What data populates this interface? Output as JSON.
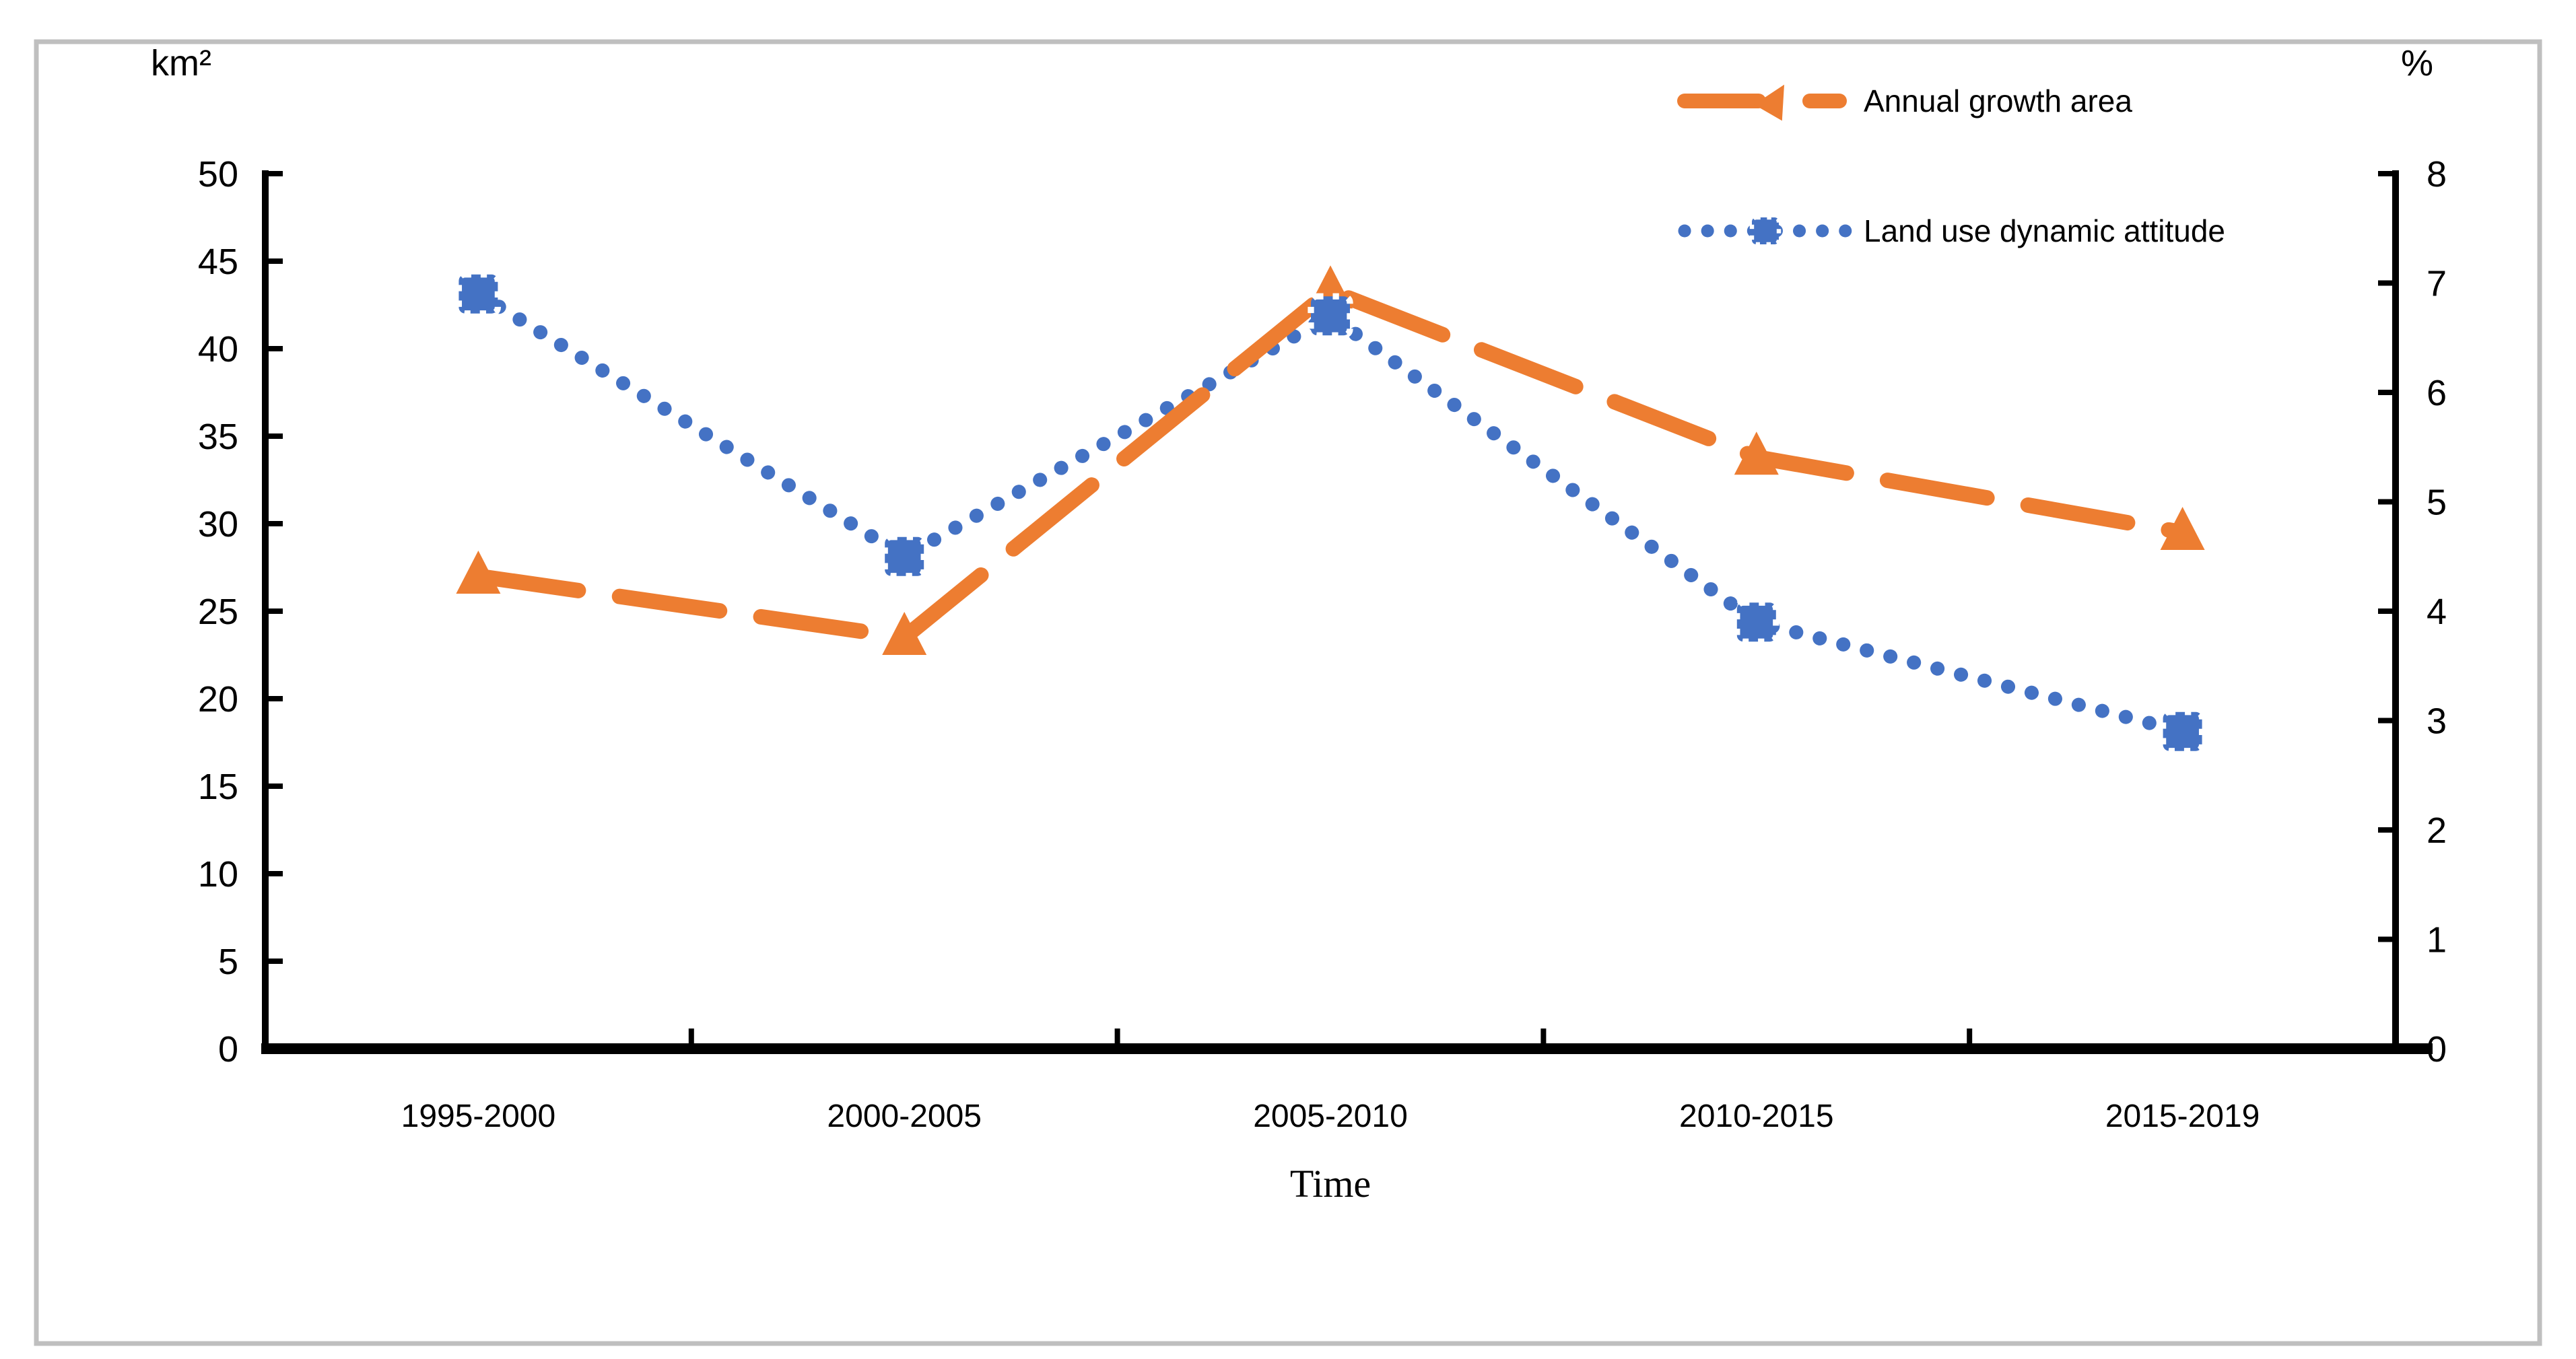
{
  "figure": {
    "left_axis_unit": "km²",
    "right_axis_unit": "%",
    "x_axis_title": "Time",
    "border_color": "#BFBFBF",
    "background": "#FFFFFF"
  },
  "legend": {
    "items": [
      {
        "label": "Annual growth area",
        "color": "#ED7D31",
        "marker": "triangle",
        "line": "dashed"
      },
      {
        "label": "Land use dynamic attitude",
        "color": "#4472C4",
        "marker": "stamp-square",
        "line": "dotted"
      }
    ]
  },
  "chart_data": {
    "type": "line",
    "categories": [
      "1995-2000",
      "2000-2005",
      "2005-2010",
      "2010-2015",
      "2015-2019"
    ],
    "series": [
      {
        "name": "Annual growth area",
        "axis": "left",
        "unit": "km²",
        "color": "#ED7D31",
        "marker": "triangle",
        "line_style": "dashed",
        "values": [
          27.0,
          23.5,
          43.3,
          33.8,
          29.5
        ]
      },
      {
        "name": "Land use dynamic attitude",
        "axis": "right",
        "unit": "%",
        "color": "#4472C4",
        "marker": "stamp-square",
        "line_style": "dotted",
        "values": [
          6.9,
          4.5,
          6.7,
          3.9,
          2.9
        ]
      }
    ],
    "left_axis": {
      "label": "km²",
      "min": 0,
      "max": 50,
      "step": 5,
      "tick_labels": [
        "0",
        "5",
        "10",
        "15",
        "20",
        "25",
        "30",
        "35",
        "40",
        "45",
        "50"
      ]
    },
    "right_axis": {
      "label": "%",
      "min": 0,
      "max": 8,
      "step": 1,
      "tick_labels": [
        "0",
        "1",
        "2",
        "3",
        "4",
        "5",
        "6",
        "7",
        "8"
      ]
    },
    "xlabel": "Time",
    "legend_position": "top-right",
    "grid": false
  },
  "colors": {
    "orange": "#ED7D31",
    "blue": "#4472C4",
    "axis": "#000000",
    "text": "#000000",
    "frame": "#BFBFBF",
    "background": "#FFFFFF"
  }
}
